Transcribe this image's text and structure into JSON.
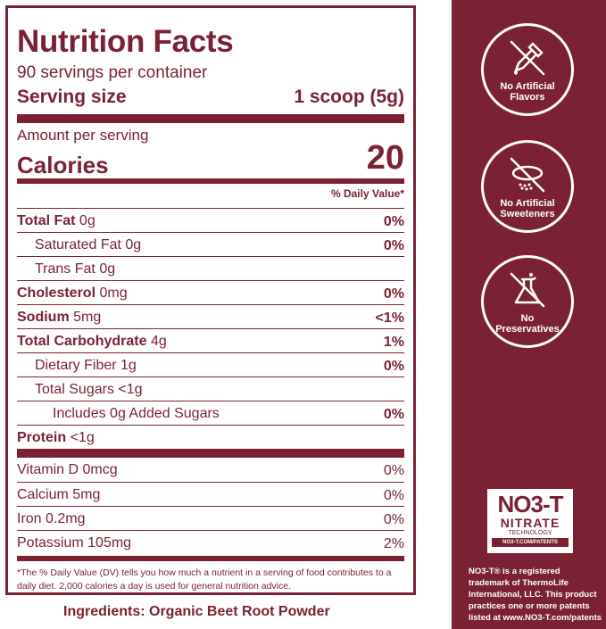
{
  "label": {
    "title": "Nutrition Facts",
    "servings": "90 servings per container",
    "serving_size_label": "Serving size",
    "serving_size_value": "1 scoop (5g)",
    "amount_per_serving": "Amount per serving",
    "calories_label": "Calories",
    "calories_value": "20",
    "dv_header": "% Daily Value*",
    "rows": [
      {
        "bold": "Total Fat",
        "text": " 0g",
        "dv": "0%"
      },
      {
        "bold": "",
        "text": "Saturated Fat 0g",
        "dv": "0%"
      },
      {
        "bold": "",
        "text": "Trans Fat 0g",
        "dv": ""
      },
      {
        "bold": "Cholesterol",
        "text": " 0mg",
        "dv": "0%"
      },
      {
        "bold": "Sodium",
        "text": " 5mg",
        "dv": "<1%"
      },
      {
        "bold": "Total Carbohydrate",
        "text": " 4g",
        "dv": "1%"
      },
      {
        "bold": "",
        "text": "Dietary Fiber 1g",
        "dv": "0%"
      },
      {
        "bold": "",
        "text": "Total Sugars <1g",
        "dv": ""
      },
      {
        "bold": "",
        "text": "Includes 0g Added Sugars",
        "dv": "0%"
      },
      {
        "bold": "Protein",
        "text": " <1g",
        "dv": ""
      }
    ],
    "vitamins": [
      {
        "text": "Vitamin D 0mcg",
        "dv": "0%"
      },
      {
        "text": "Calcium 5mg",
        "dv": "0%"
      },
      {
        "text": "Iron 0.2mg",
        "dv": "0%"
      },
      {
        "text": "Potassium 105mg",
        "dv": "2%"
      }
    ],
    "footnote": "*The % Daily Value (DV) tells you how much a nutrient in a serving of food contributes to a daily diet. 2,000 calories a day is used for general nutrition advice."
  },
  "ingredients": "Ingredients: Organic Beet Root Powder",
  "badges": [
    {
      "line1": "No Artificial",
      "line2": "Flavors",
      "icon": "dropper-crossed-icon"
    },
    {
      "line1": "No Artificial",
      "line2": "Sweeteners",
      "icon": "sweetener-crossed-icon"
    },
    {
      "line1": "No",
      "line2": "Preservatives",
      "icon": "flask-crossed-icon"
    }
  ],
  "logo": {
    "big": "NO3-T",
    "mid": "NITRATE",
    "small": "TECHNOLOGY",
    "url": "NO3-T.COM/PATENTS"
  },
  "trademark": {
    "brand": "NO3-T®",
    "text": " is a registered trademark of ThermoLife International, LLC. This product practices one or more patents listed at ",
    "url": "www.NO3-T.com/patents"
  },
  "colors": {
    "brand": "#7a2233",
    "background": "#ffffff"
  }
}
